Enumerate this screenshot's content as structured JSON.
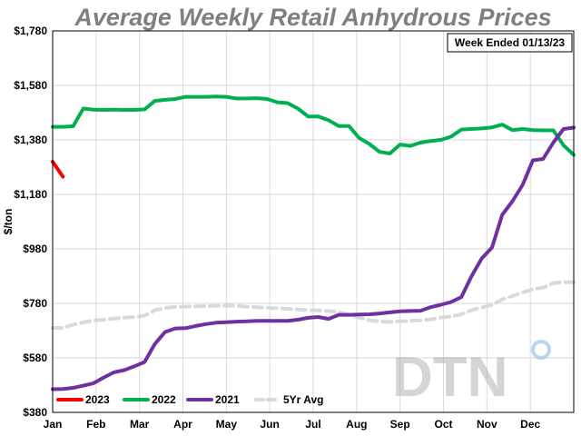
{
  "chart_data": {
    "type": "line",
    "title": "Average Weekly Retail Anhydrous Prices",
    "ylabel": "$/ton",
    "annotation": "Week Ended 01/13/23",
    "ylim": [
      380,
      1780
    ],
    "yticks": [
      380,
      580,
      780,
      980,
      1180,
      1380,
      1580,
      1780
    ],
    "ytick_labels": [
      "$380",
      "$580",
      "$780",
      "$980",
      "$1,180",
      "$1,380",
      "$1,580",
      "$1,780"
    ],
    "x_categories": [
      "Jan",
      "Feb",
      "Mar",
      "Apr",
      "May",
      "Jun",
      "Jul",
      "Aug",
      "Sep",
      "Oct",
      "Nov",
      "Dec"
    ],
    "x_unit": "week of year",
    "xlim": [
      1,
      52
    ],
    "grid": true,
    "legend_placement": "bottom-left",
    "watermark": "DTN",
    "series": [
      {
        "name": "2023",
        "color": "#ff0000",
        "x": [
          1,
          2
        ],
        "values": [
          1300,
          1245
        ]
      },
      {
        "name": "2022",
        "color": "#00b050",
        "x": [
          1,
          2,
          3,
          4,
          5,
          6,
          7,
          8,
          9,
          10,
          11,
          12,
          13,
          14,
          15,
          16,
          17,
          18,
          19,
          20,
          21,
          22,
          23,
          24,
          25,
          26,
          27,
          28,
          29,
          30,
          31,
          32,
          33,
          34,
          35,
          36,
          37,
          38,
          39,
          40,
          41,
          42,
          43,
          44,
          45,
          46,
          47,
          48,
          49,
          50,
          51,
          52
        ],
        "values": [
          1428,
          1428,
          1430,
          1495,
          1491,
          1490,
          1491,
          1490,
          1490,
          1492,
          1523,
          1527,
          1530,
          1538,
          1538,
          1538,
          1539,
          1538,
          1532,
          1532,
          1533,
          1530,
          1518,
          1515,
          1495,
          1466,
          1466,
          1452,
          1431,
          1431,
          1387,
          1365,
          1336,
          1330,
          1363,
          1358,
          1370,
          1376,
          1380,
          1392,
          1418,
          1420,
          1422,
          1426,
          1436,
          1416,
          1420,
          1416,
          1415,
          1415,
          1360,
          1325
        ]
      },
      {
        "name": "2021",
        "color": "#7030a0",
        "x": [
          1,
          2,
          3,
          4,
          5,
          6,
          7,
          8,
          9,
          10,
          11,
          12,
          13,
          14,
          15,
          16,
          17,
          18,
          19,
          20,
          21,
          22,
          23,
          24,
          25,
          26,
          27,
          28,
          29,
          30,
          31,
          32,
          33,
          34,
          35,
          36,
          37,
          38,
          39,
          40,
          41,
          42,
          43,
          44,
          45,
          46,
          47,
          48,
          49,
          50,
          51,
          52
        ],
        "values": [
          465,
          466,
          470,
          478,
          487,
          508,
          527,
          535,
          549,
          565,
          631,
          675,
          688,
          689,
          697,
          704,
          709,
          711,
          713,
          714,
          716,
          716,
          716,
          716,
          720,
          727,
          730,
          723,
          738,
          738,
          739,
          740,
          743,
          747,
          751,
          752,
          753,
          766,
          775,
          785,
          803,
          880,
          945,
          985,
          1105,
          1155,
          1215,
          1305,
          1310,
          1370,
          1420,
          1425
        ]
      },
      {
        "name": "5Yr Avg",
        "color": "#d9d9d9",
        "x": [
          1,
          2,
          3,
          4,
          5,
          6,
          7,
          8,
          9,
          10,
          11,
          12,
          13,
          14,
          15,
          16,
          17,
          18,
          19,
          20,
          21,
          22,
          23,
          24,
          25,
          26,
          27,
          28,
          29,
          30,
          31,
          32,
          33,
          34,
          35,
          36,
          37,
          38,
          39,
          40,
          41,
          42,
          43,
          44,
          45,
          46,
          47,
          48,
          49,
          50,
          51,
          52
        ],
        "values": [
          690,
          690,
          702,
          710,
          718,
          720,
          724,
          728,
          730,
          735,
          755,
          763,
          767,
          768,
          769,
          770,
          771,
          772,
          771,
          768,
          766,
          764,
          762,
          760,
          758,
          755,
          754,
          752,
          748,
          738,
          728,
          718,
          714,
          712,
          714,
          716,
          718,
          721,
          728,
          732,
          740,
          755,
          765,
          774,
          795,
          807,
          820,
          832,
          838,
          854,
          858,
          857
        ]
      }
    ]
  }
}
